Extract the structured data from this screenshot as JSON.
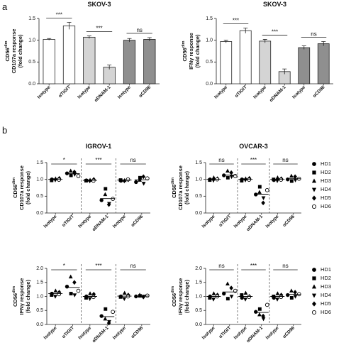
{
  "panel_labels": [
    "a",
    "b"
  ],
  "chart_data": [
    {
      "type": "bar",
      "title": "SKOV-3",
      "ylabel": {
        "base": "CD56",
        "sup": "dim",
        "lines": [
          "CD107a response",
          "(fold change)"
        ]
      },
      "categories": [
        "Isotype",
        "αTIGIT",
        "Isotype",
        "αDNAM-1",
        "Isotype",
        "αCD96"
      ],
      "values": [
        1.02,
        1.33,
        1.07,
        0.38,
        1.0,
        1.02
      ],
      "errors": [
        0.02,
        0.08,
        0.03,
        0.05,
        0.04,
        0.04
      ],
      "colors": [
        "#ffffff",
        "#ffffff",
        "#d4d4d4",
        "#d4d4d4",
        "#8f8f8f",
        "#8f8f8f"
      ],
      "significance": [
        "***",
        "***",
        "ns"
      ],
      "ylim": [
        0,
        1.5
      ],
      "yticks": [
        {
          "value": 0,
          "label": "0.0"
        },
        0.5,
        {
          "value": 1,
          "label": "1.0"
        },
        1.5
      ]
    },
    {
      "type": "bar",
      "title": "SKOV-3",
      "ylabel": {
        "base": "CD56",
        "sup": "dim",
        "lines": [
          "IFNγ response",
          "(fold change)"
        ]
      },
      "categories": [
        "Isotype",
        "αTIGIT",
        "Isotype",
        "αDNAM-1",
        "Isotype",
        "αCD96"
      ],
      "values": [
        0.97,
        1.22,
        0.98,
        0.28,
        0.83,
        0.92
      ],
      "errors": [
        0.03,
        0.06,
        0.04,
        0.06,
        0.04,
        0.05
      ],
      "colors": [
        "#ffffff",
        "#ffffff",
        "#d4d4d4",
        "#d4d4d4",
        "#8f8f8f",
        "#8f8f8f"
      ],
      "significance": [
        "***",
        "***",
        "ns"
      ],
      "ylim": [
        0,
        1.5
      ],
      "yticks": [
        {
          "value": 0,
          "label": "0.0"
        },
        0.5,
        {
          "value": 1,
          "label": "1.0"
        },
        1.5
      ]
    },
    {
      "type": "dot",
      "title": "IGROV-1",
      "ylabel": {
        "base": "CD56",
        "sup": "dim",
        "lines": [
          "CD107a response",
          "(fold change)"
        ]
      },
      "categories": [
        "Isotype",
        "αTIGIT",
        "Isotype",
        "αDNAM-1",
        "Isotype",
        "αCD96"
      ],
      "series": [
        {
          "marker": "circle",
          "color": "#000000",
          "values": [
            1.0,
            1.18,
            0.97,
            0.38,
            0.96,
            0.92
          ]
        },
        {
          "marker": "square",
          "color": "#000000",
          "values": [
            0.97,
            1.12,
            0.96,
            0.72,
            0.98,
            1.05
          ]
        },
        {
          "marker": "triangle-up",
          "color": "#000000",
          "values": [
            1.02,
            1.25,
            0.98,
            0.55,
            0.97,
            0.98
          ]
        },
        {
          "marker": "triangle-down",
          "color": "#000000",
          "values": [
            0.98,
            1.15,
            0.95,
            0.28,
            0.95,
            0.88
          ]
        },
        {
          "marker": "diamond",
          "color": "#000000",
          "values": [
            1.03,
            1.22,
            1.0,
            0.25,
            0.99,
            1.08
          ]
        },
        {
          "marker": "circle-open",
          "color": "#000000",
          "values": [
            0.99,
            1.1,
            0.96,
            0.42,
            1.0,
            1.03
          ]
        }
      ],
      "means": [
        1.0,
        1.17,
        0.97,
        0.43,
        0.98,
        0.99
      ],
      "significance": [
        "*",
        "***",
        "ns"
      ],
      "ylim": [
        0,
        1.5
      ],
      "yticks": [
        {
          "value": 0,
          "label": "0.0"
        },
        0.5,
        {
          "value": 1,
          "label": "1.0"
        },
        1.5
      ]
    },
    {
      "type": "dot",
      "title": "OVCAR-3",
      "ylabel": {
        "base": "CD56",
        "sup": "dim",
        "lines": [
          "CD107a response",
          "(fold change)"
        ]
      },
      "categories": [
        "Isotype",
        "αTIGIT",
        "Isotype",
        "αDNAM-1",
        "Isotype",
        "αCD96"
      ],
      "series": [
        {
          "name": "HD1",
          "marker": "circle",
          "color": "#000000",
          "values": [
            1.0,
            1.12,
            1.0,
            0.55,
            0.98,
            1.0
          ]
        },
        {
          "name": "HD2",
          "marker": "square",
          "color": "#000000",
          "values": [
            0.98,
            1.05,
            0.96,
            0.78,
            1.0,
            0.95
          ]
        },
        {
          "name": "HD3",
          "marker": "triangle-up",
          "color": "#000000",
          "values": [
            1.05,
            1.25,
            1.02,
            0.62,
            1.05,
            1.1
          ]
        },
        {
          "name": "HD4",
          "marker": "triangle-down",
          "color": "#000000",
          "values": [
            0.97,
            1.08,
            0.98,
            0.45,
            0.96,
            0.98
          ]
        },
        {
          "name": "HD5",
          "marker": "diamond",
          "color": "#000000",
          "values": [
            1.02,
            1.2,
            1.03,
            0.3,
            1.02,
            1.08
          ]
        },
        {
          "name": "HD6",
          "marker": "circle-open",
          "color": "#000000",
          "values": [
            1.0,
            1.1,
            0.99,
            0.68,
            0.99,
            1.02
          ]
        }
      ],
      "means": [
        1.0,
        1.13,
        1.0,
        0.56,
        1.0,
        1.02
      ],
      "significance": [
        "ns",
        "***",
        "ns"
      ],
      "legend": true,
      "ylim": [
        0,
        1.5
      ],
      "yticks": [
        {
          "value": 0,
          "label": "0.0"
        },
        0.5,
        {
          "value": 1,
          "label": "1.0"
        },
        1.5
      ]
    },
    {
      "type": "dot",
      "ylabel": {
        "base": "CD56",
        "sup": "dim",
        "lines": [
          "IFNγ response",
          "(fold change)"
        ]
      },
      "categories": [
        "Isotype",
        "αTIGIT",
        "Isotype",
        "αDNAM-1",
        "Isotype",
        "αCD96"
      ],
      "series": [
        {
          "marker": "circle",
          "color": "#000000",
          "values": [
            1.1,
            1.35,
            1.0,
            0.3,
            1.0,
            1.0
          ]
        },
        {
          "marker": "square",
          "color": "#000000",
          "values": [
            1.05,
            1.1,
            0.95,
            0.55,
            0.98,
            1.02
          ]
        },
        {
          "marker": "triangle-up",
          "color": "#000000",
          "values": [
            1.2,
            1.7,
            1.1,
            0.2,
            1.12,
            1.05
          ]
        },
        {
          "marker": "triangle-down",
          "color": "#000000",
          "values": [
            1.0,
            1.05,
            0.92,
            0.1,
            0.92,
            1.0
          ]
        },
        {
          "marker": "diamond",
          "color": "#000000",
          "values": [
            1.15,
            1.5,
            1.08,
            0.05,
            1.05,
            0.98
          ]
        },
        {
          "marker": "circle-open",
          "color": "#000000",
          "values": [
            1.08,
            1.2,
            0.98,
            0.45,
            1.0,
            1.03
          ]
        }
      ],
      "means": [
        1.1,
        1.32,
        1.0,
        0.28,
        1.01,
        1.01
      ],
      "significance": [
        "*",
        "***",
        "ns"
      ],
      "ylim": [
        0,
        2
      ],
      "yticks": [
        {
          "value": 0,
          "label": "0.0"
        },
        0.5,
        {
          "value": 1,
          "label": "1.0"
        },
        1.5,
        {
          "value": 2,
          "label": "2.0"
        }
      ]
    },
    {
      "type": "dot",
      "ylabel": {
        "base": "CD56",
        "sup": "dim",
        "lines": [
          "IFNγ response",
          "(fold change)"
        ]
      },
      "categories": [
        "Isotype",
        "αTIGIT",
        "Isotype",
        "αDNAM-1",
        "Isotype",
        "αCD96"
      ],
      "series": [
        {
          "name": "HD1",
          "marker": "circle",
          "color": "#000000",
          "values": [
            1.0,
            1.1,
            0.95,
            0.45,
            0.95,
            1.05
          ]
        },
        {
          "name": "HD2",
          "marker": "square",
          "color": "#000000",
          "values": [
            0.95,
            0.92,
            1.05,
            0.55,
            1.0,
            0.95
          ]
        },
        {
          "name": "HD3",
          "marker": "triangle-up",
          "color": "#000000",
          "values": [
            1.1,
            1.45,
            1.12,
            0.35,
            1.1,
            1.2
          ]
        },
        {
          "name": "HD4",
          "marker": "triangle-down",
          "color": "#000000",
          "values": [
            0.9,
            1.0,
            0.9,
            0.2,
            0.9,
            1.0
          ]
        },
        {
          "name": "HD5",
          "marker": "diamond",
          "color": "#000000",
          "values": [
            1.05,
            1.3,
            1.0,
            0.3,
            1.05,
            1.15
          ]
        },
        {
          "name": "HD6",
          "marker": "circle-open",
          "color": "#000000",
          "values": [
            1.0,
            1.2,
            0.98,
            0.7,
            0.98,
            1.08
          ]
        }
      ],
      "means": [
        1.0,
        1.16,
        1.0,
        0.43,
        1.0,
        1.07
      ],
      "significance": [
        "ns",
        "***",
        "ns"
      ],
      "legend": true,
      "ylim": [
        0,
        2
      ],
      "yticks": [
        {
          "value": 0,
          "label": "0.0"
        },
        0.5,
        {
          "value": 1,
          "label": "1.0"
        },
        1.5,
        {
          "value": 2,
          "label": "2.0"
        }
      ]
    }
  ]
}
